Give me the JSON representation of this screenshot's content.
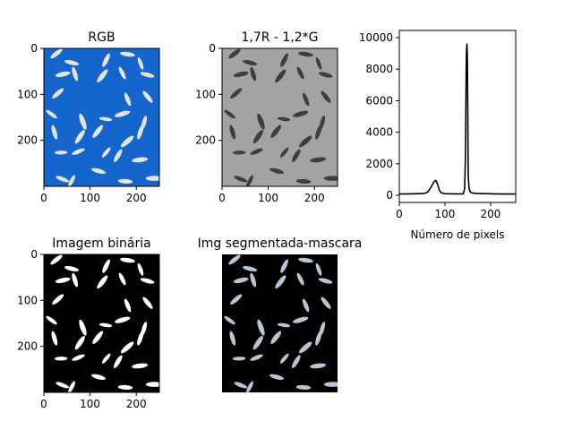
{
  "chart_data": [
    {
      "type": "image",
      "title": "RGB",
      "colors": {
        "background": "#1466cc",
        "grain": "#e3e3da"
      },
      "xticks": [
        "0",
        "100",
        "200"
      ],
      "yticks": [
        "0",
        "100",
        "200"
      ],
      "xlim": [
        0,
        250
      ],
      "ylim": [
        300,
        0
      ]
    },
    {
      "type": "image",
      "title": "1,7R - 1,2*G",
      "colors": {
        "background": "#a3a3a3",
        "grain": "#3e3e3e"
      },
      "xticks": [
        "0",
        "100",
        "200"
      ],
      "yticks": [
        "0",
        "100",
        "200"
      ],
      "xlim": [
        0,
        250
      ],
      "ylim": [
        300,
        0
      ]
    },
    {
      "type": "line",
      "title": "",
      "xlabel": "Número de pixels",
      "ylabel": "",
      "xlim": [
        0,
        255
      ],
      "ylim": [
        0,
        10000
      ],
      "xticks": [
        "0",
        "100",
        "200"
      ],
      "yticks": [
        "0",
        "2000",
        "4000",
        "6000",
        "8000",
        "10000"
      ],
      "grid": false,
      "series": [
        {
          "color": "#000000",
          "x": [
            0,
            20,
            40,
            55,
            62,
            68,
            72,
            76,
            80,
            84,
            88,
            92,
            100,
            120,
            140,
            143,
            145,
            146,
            147,
            148,
            149,
            150,
            151,
            153,
            156,
            160,
            170,
            190,
            210,
            230,
            255
          ],
          "y": [
            80,
            90,
            100,
            120,
            200,
            450,
            650,
            850,
            950,
            700,
            300,
            150,
            100,
            90,
            90,
            400,
            2500,
            6000,
            9000,
            9600,
            8800,
            5000,
            1200,
            400,
            200,
            150,
            120,
            100,
            90,
            80,
            80
          ]
        }
      ]
    },
    {
      "type": "image",
      "title": "Imagem binária",
      "colors": {
        "background": "#000000",
        "grain": "#ffffff"
      },
      "xticks": [
        "0",
        "100",
        "200"
      ],
      "yticks": [
        "0",
        "100",
        "200"
      ],
      "xlim": [
        0,
        250
      ],
      "ylim": [
        300,
        0
      ]
    },
    {
      "type": "image",
      "title": "Img segmentada-mascara",
      "colors": {
        "background": "#000000",
        "grain": "#b9c4d4"
      },
      "xticks": [],
      "yticks": [],
      "xlim": [
        0,
        250
      ],
      "ylim": [
        300,
        0
      ]
    }
  ]
}
